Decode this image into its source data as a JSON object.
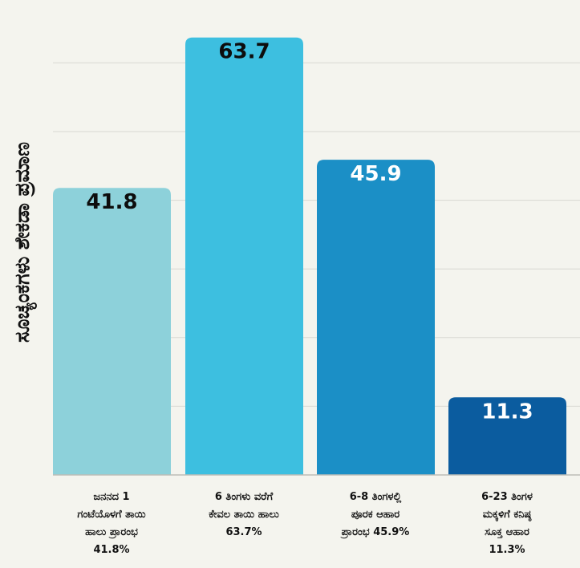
{
  "chart_data": {
    "type": "bar",
    "ylabel": "ಸೂಚ್ಯಂಕಗಳು ಶೇಕಡಾ ಪ್ರಮಾಣ",
    "xlabel": "",
    "ylim": [
      0,
      75
    ],
    "grid": true,
    "categories": [
      "ಜನನದ 1 ಗಂಟೆಯೊಳಗೆ ತಾಯಿ ಹಾಲು ಪ್ರಾರಂಭ 41.8%",
      "6 ತಿಂಗಳು ವರೆಗೆ ಕೇವಲ ತಾಯಿ ಹಾಲು 63.7%",
      "6-8 ತಿಂಗಳಲ್ಲಿ ಪೂರಕ ಆಹಾರ ಪ್ರಾರಂಭ 45.9%",
      "6-23 ತಿಂಗಳ ಮಕ್ಕಳಿಗೆ ಕನಿಷ್ಠ ಸೂಕ್ತ ಆಹಾರ 11.3%"
    ],
    "category_lines": [
      [
        "ಜನನದ 1",
        "ಗಂಟೆಯೊಳಗೆ ತಾಯಿ",
        "ಹಾಲು ಪ್ರಾರಂಭ",
        "41.8%"
      ],
      [
        "6 ತಿಂಗಳು ವರೆಗೆ",
        "ಕೇವಲ ತಾಯಿ ಹಾಲು",
        "63.7%"
      ],
      [
        "6-8 ತಿಂಗಳಲ್ಲಿ",
        "ಪೂರಕ ಆಹಾರ",
        "ಪ್ರಾರಂಭ 45.9%"
      ],
      [
        "6-23 ತಿಂಗಳ",
        "ಮಕ್ಕಳಿಗೆ ಕನಿಷ್ಠ",
        "ಸೂಕ್ತ ಆಹಾರ",
        "11.3%"
      ]
    ],
    "values": [
      41.8,
      63.7,
      45.9,
      11.3
    ],
    "value_labels": [
      "41.8",
      "63.7",
      "45.9",
      "11.3"
    ],
    "bar_colors": [
      "#8dd1da",
      "#3dbfe0",
      "#1b8fc6",
      "#0b5c9f"
    ],
    "label_colors": [
      "#0d0d0d",
      "#0d0d0d",
      "#ffffff",
      "#ffffff"
    ],
    "gridline_values": [
      10,
      20,
      30,
      40,
      50,
      60,
      70
    ],
    "grid_color": "#d8d8d2",
    "axis_color": "#bdbdb7"
  }
}
